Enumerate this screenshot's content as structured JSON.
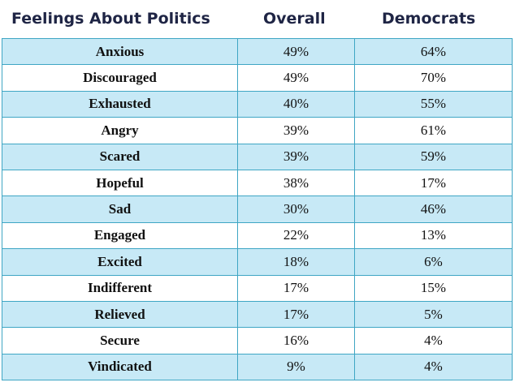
{
  "chart_data": {
    "type": "table",
    "title": "",
    "columns": [
      "Feelings About Politics",
      "Overall",
      "Democrats"
    ],
    "rows": [
      {
        "label": "Anxious",
        "overall": "49%",
        "democrats": "64%"
      },
      {
        "label": "Discouraged",
        "overall": "49%",
        "democrats": "70%"
      },
      {
        "label": "Exhausted",
        "overall": "40%",
        "democrats": "55%"
      },
      {
        "label": "Angry",
        "overall": "39%",
        "democrats": "61%"
      },
      {
        "label": "Scared",
        "overall": "39%",
        "democrats": "59%"
      },
      {
        "label": "Hopeful",
        "overall": "38%",
        "democrats": "17%"
      },
      {
        "label": "Sad",
        "overall": "30%",
        "democrats": "46%"
      },
      {
        "label": "Engaged",
        "overall": "22%",
        "democrats": "13%"
      },
      {
        "label": "Excited",
        "overall": "18%",
        "democrats": "6%"
      },
      {
        "label": "Indifferent",
        "overall": "17%",
        "democrats": "15%"
      },
      {
        "label": "Relieved",
        "overall": "17%",
        "democrats": "5%"
      },
      {
        "label": "Secure",
        "overall": "16%",
        "democrats": "4%"
      },
      {
        "label": "Vindicated",
        "overall": "9%",
        "democrats": "4%"
      }
    ],
    "colors": {
      "header_text": "#1f2545",
      "stripe": "#c7e9f6",
      "border": "#3fa6c4"
    }
  }
}
